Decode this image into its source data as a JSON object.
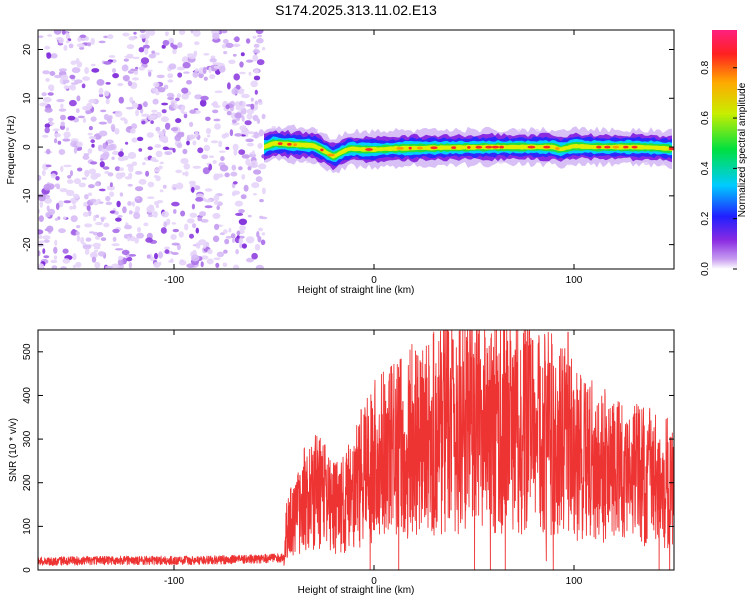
{
  "figure_title": "S174.2025.313.11.02.E13",
  "chart_data": [
    {
      "type": "heatmap",
      "title": "",
      "xlabel": "Height of straight line (km)",
      "ylabel": "Frequency (Hz)",
      "xlim": [
        -168,
        150
      ],
      "ylim": [
        -25,
        24
      ],
      "x_ticks": [
        -100,
        0,
        100
      ],
      "y_ticks": [
        -20,
        -10,
        0,
        10,
        20
      ],
      "noise_region_x": [
        -168,
        -55
      ],
      "ridge": {
        "x": [
          -55,
          -50,
          -40,
          -30,
          -25,
          -20,
          -17,
          -12,
          -5,
          0,
          10,
          20,
          40,
          60,
          80,
          90,
          93,
          100,
          110,
          120,
          130,
          140,
          150
        ],
        "freq": [
          0,
          0.8,
          0.5,
          0.3,
          -0.8,
          -2,
          -1.2,
          -0.3,
          -0.5,
          -0.5,
          -0.3,
          -0.2,
          -0.1,
          0,
          0,
          0,
          -0.5,
          0.2,
          0,
          0,
          0,
          -0.1,
          -0.4
        ]
      },
      "colorbar": {
        "label": "Normalized spectral amplitude",
        "range": [
          0,
          0.95
        ],
        "ticks": [
          0.0,
          0.2,
          0.4,
          0.6,
          0.8
        ]
      }
    },
    {
      "type": "line",
      "title": "",
      "xlabel": "Height of straight line (km)",
      "ylabel": "SNR (10 * v/v)",
      "xlim": [
        -168,
        150
      ],
      "ylim": [
        0,
        550
      ],
      "x_ticks": [
        -100,
        0,
        100
      ],
      "y_ticks": [
        0,
        100,
        200,
        300,
        400,
        500
      ],
      "color": "#ee3333",
      "envelope": {
        "x": [
          -168,
          -130,
          -90,
          -60,
          -45,
          -44,
          -40,
          -35,
          -30,
          -25,
          -20,
          -15,
          -10,
          -5,
          0,
          10,
          20,
          30,
          40,
          50,
          60,
          70,
          80,
          90,
          95,
          97,
          100,
          110,
          120,
          130,
          140,
          150
        ],
        "mean": [
          20,
          22,
          22,
          25,
          28,
          90,
          120,
          160,
          180,
          170,
          140,
          150,
          190,
          220,
          250,
          270,
          300,
          320,
          330,
          330,
          330,
          325,
          320,
          310,
          300,
          290,
          270,
          250,
          230,
          220,
          210,
          200
        ]
      },
      "peak": {
        "x": 97,
        "y": 545
      }
    }
  ]
}
